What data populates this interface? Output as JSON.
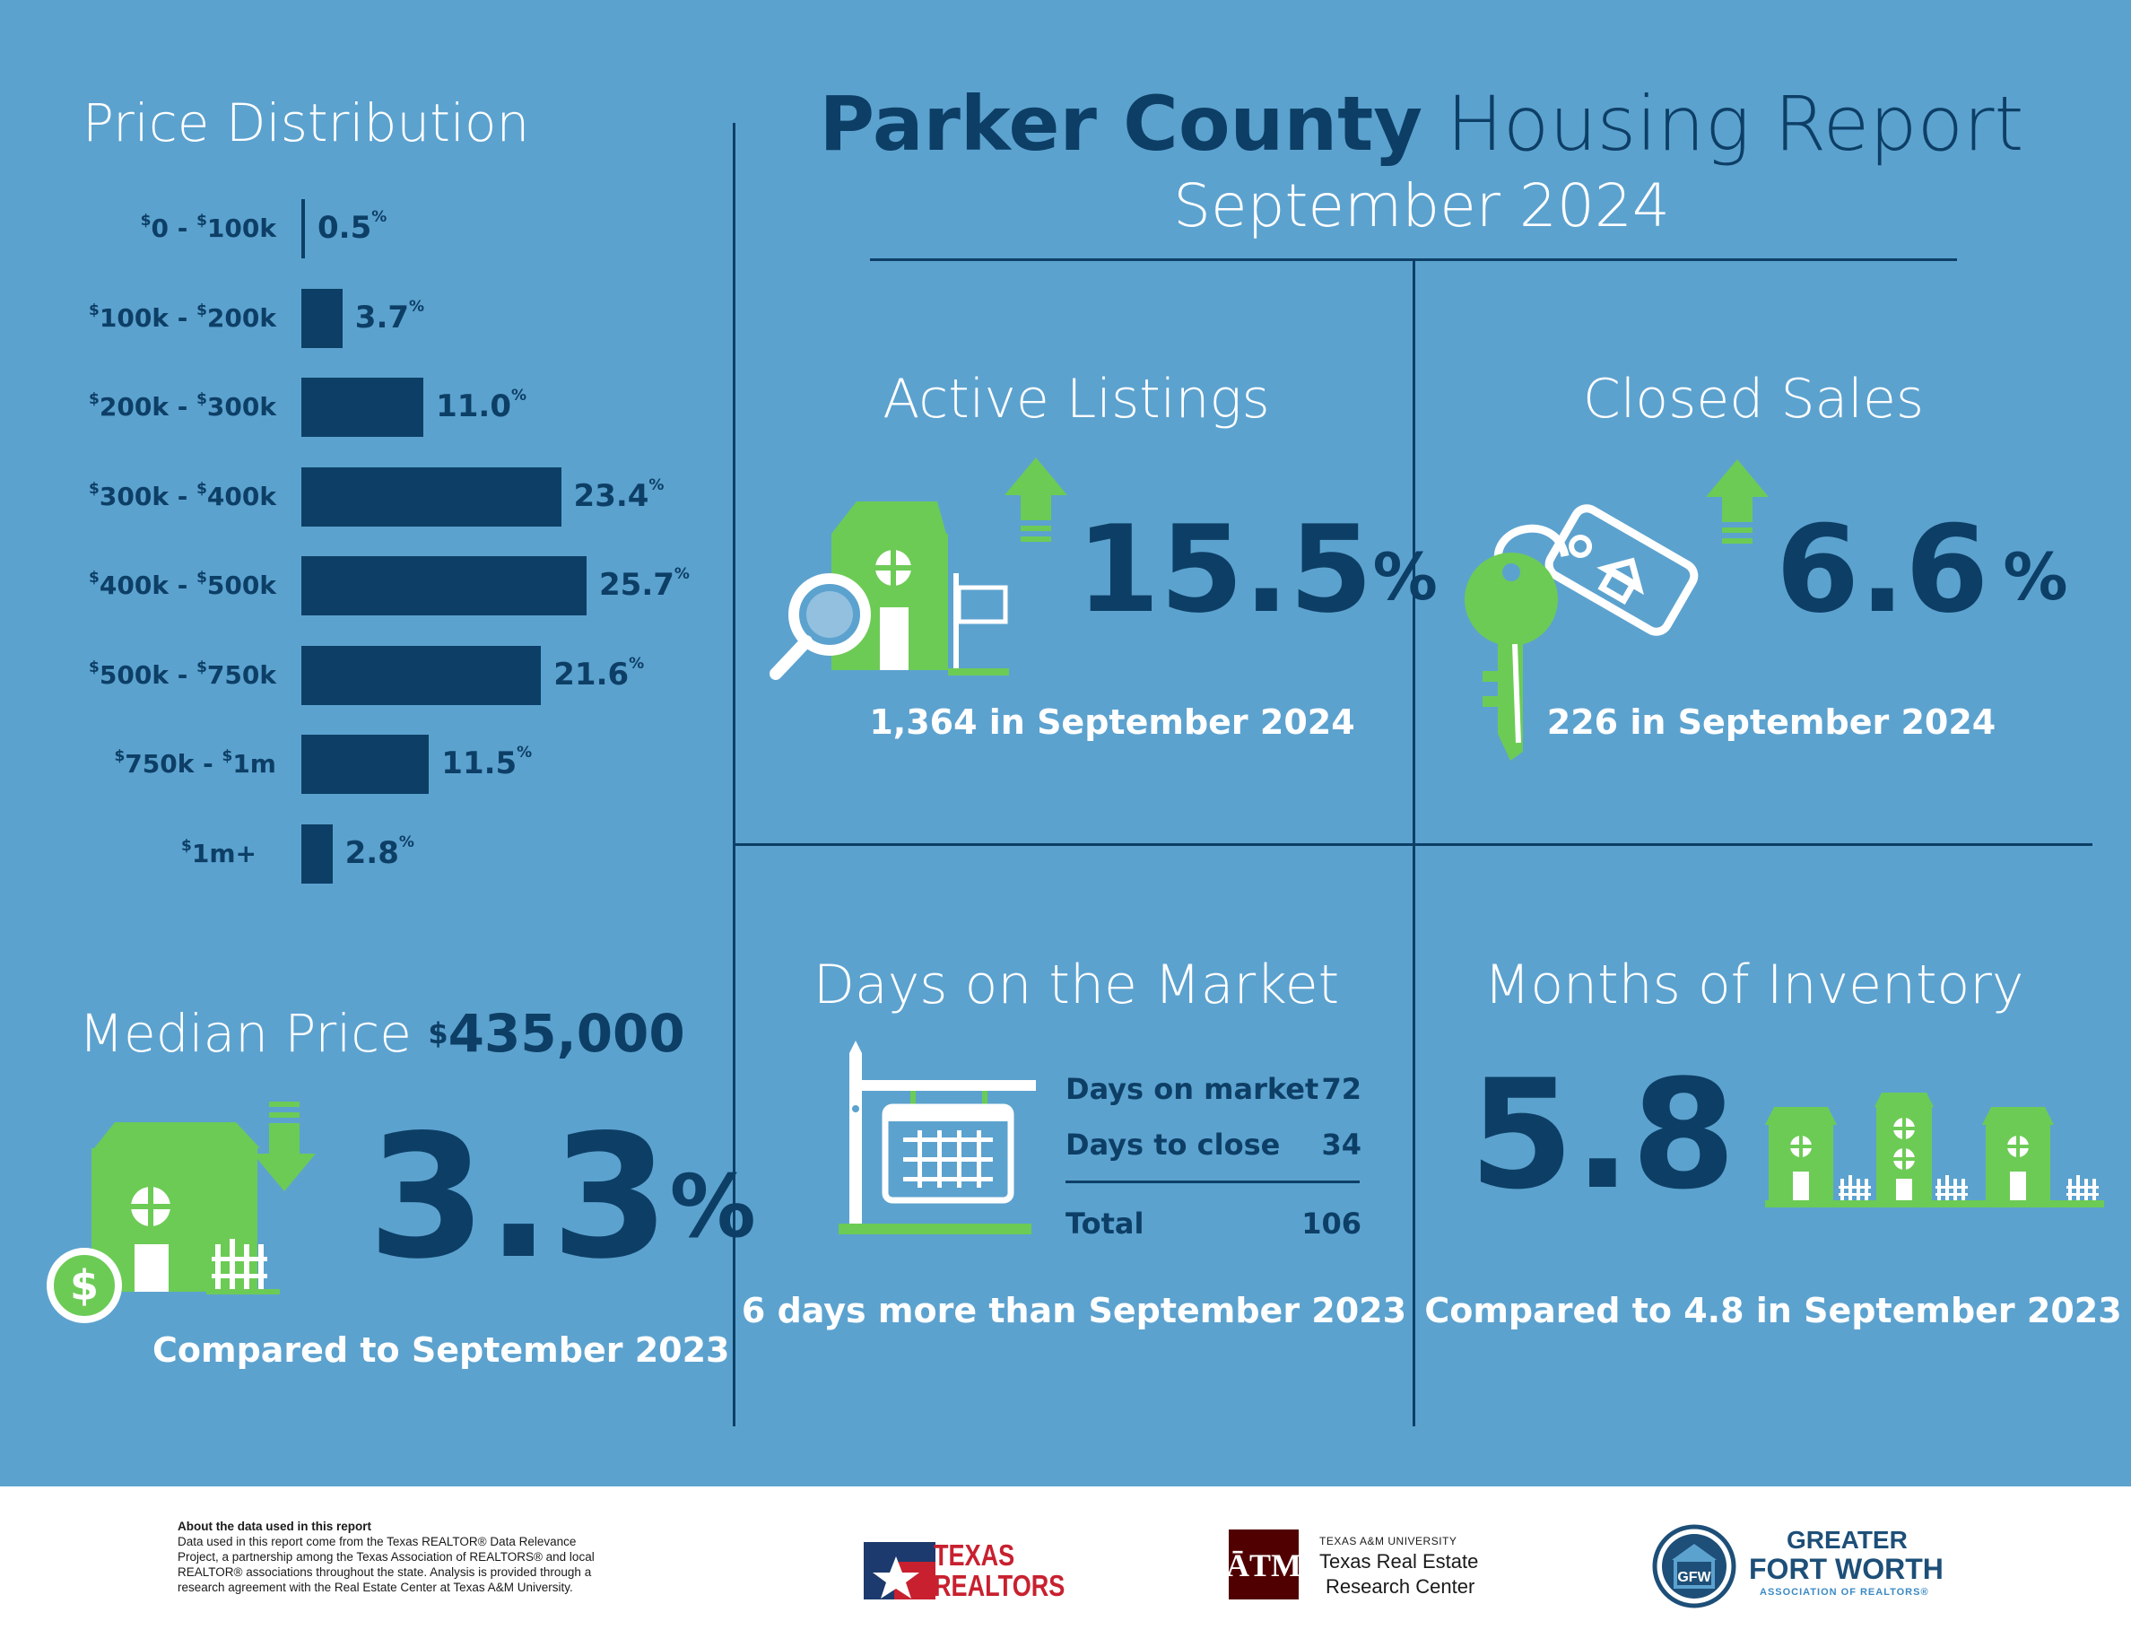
{
  "header": {
    "title_bold": "Parker County",
    "title_light": "Housing Report",
    "subtitle": "September 2024"
  },
  "price_distribution": {
    "title": "Price Distribution"
  },
  "chart_data": {
    "type": "bar",
    "orientation": "horizontal",
    "title": "Price Distribution",
    "categories": [
      "$0 - $100k",
      "$100k - $200k",
      "$200k - $300k",
      "$300k - $400k",
      "$400k - $500k",
      "$500k - $750k",
      "$750k - $1m",
      "$1m+"
    ],
    "values": [
      0.5,
      3.7,
      11.0,
      23.4,
      25.7,
      21.6,
      11.5,
      2.8
    ],
    "value_labels": [
      "0.5",
      "3.7",
      "11.0",
      "23.4",
      "25.7",
      "21.6",
      "11.5",
      "2.8"
    ],
    "unit": "%",
    "color": "#0d3f66"
  },
  "median_price": {
    "label": "Median Price",
    "currency": "$",
    "value": "435,000",
    "change": "3.3",
    "change_unit": "%",
    "direction": "down",
    "note": "Compared to September 2023"
  },
  "active_listings": {
    "title": "Active Listings",
    "change": "15.5",
    "change_unit": "%",
    "direction": "up",
    "note": "1,364 in September 2024"
  },
  "closed_sales": {
    "title": "Closed Sales",
    "change": "6.6",
    "change_unit": "%",
    "direction": "up",
    "note": "226 in September 2024"
  },
  "days_on_market": {
    "title": "Days on the Market",
    "rows": [
      {
        "label": "Days on market",
        "value": "72"
      },
      {
        "label": "Days to close",
        "value": "34"
      }
    ],
    "total_label": "Total",
    "total_value": "106",
    "note": "6 days more than September 2023"
  },
  "months_inventory": {
    "title": "Months of Inventory",
    "value": "5.8",
    "note": "Compared to 4.8 in September 2023"
  },
  "footer": {
    "about_title": "About the data used in this report",
    "about_lines": [
      "Data used in this report come from the Texas REALTOR® Data Relevance",
      "Project, a partnership among the Texas Association of REALTORS® and local",
      "REALTOR® associations throughout the state. Analysis is provided through a",
      "research agreement with the Real Estate Center at Texas A&M University."
    ],
    "texas_realtors_line1": "TEXAS",
    "texas_realtors_line2": "REALTORS",
    "tamu_small": "TEXAS A&M UNIVERSITY",
    "tamu_line1": "Texas Real Estate",
    "tamu_line2": "Research Center",
    "gfw_line1": "GREATER",
    "gfw_line2": "FORT WORTH",
    "gfw_line3": "ASSOCIATION OF REALTORS®"
  },
  "colors": {
    "background": "#5ca2cf",
    "navy": "#0d3f66",
    "green": "#6ccb55",
    "white": "#ffffff"
  }
}
